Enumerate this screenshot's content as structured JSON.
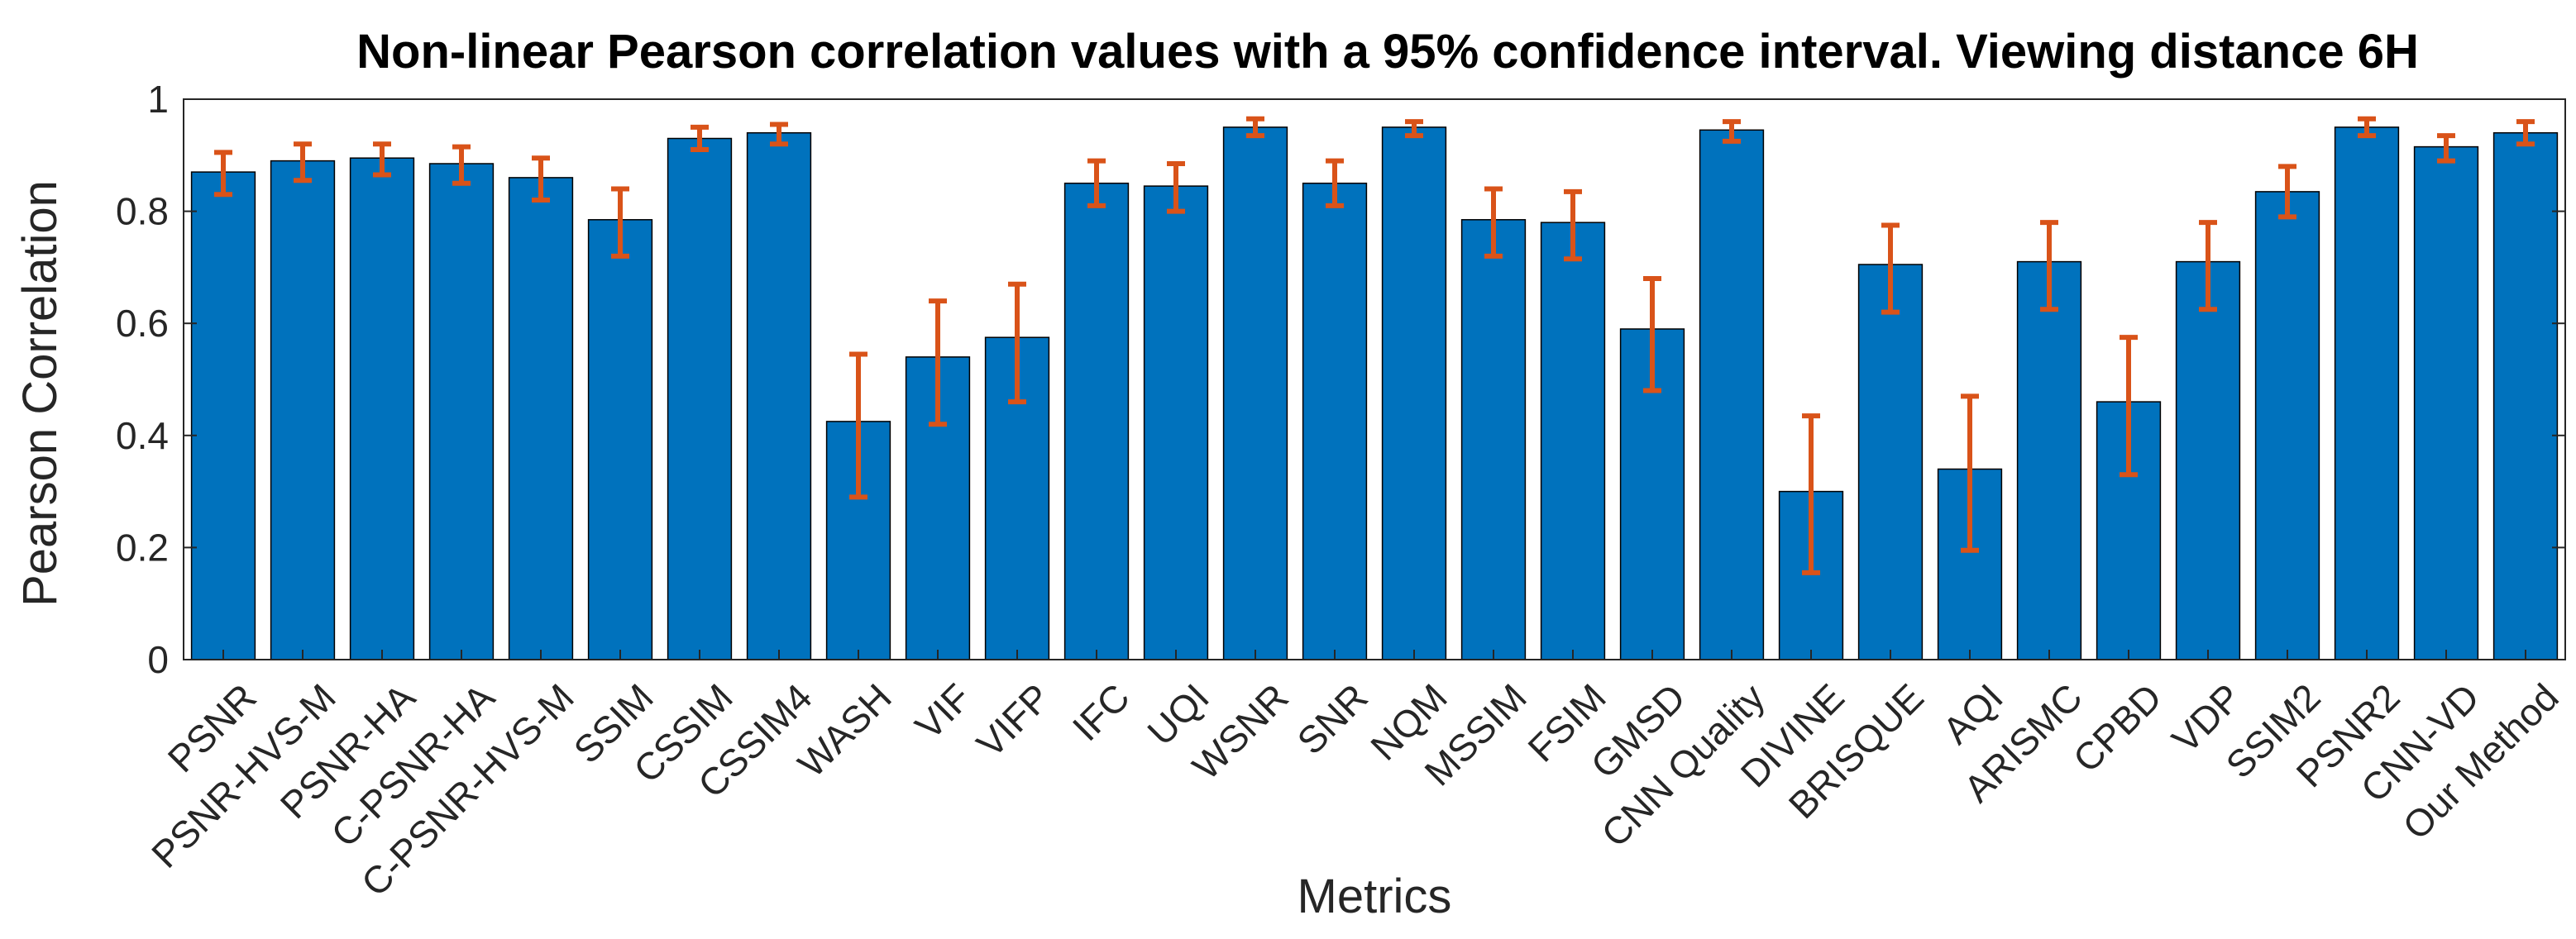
{
  "chart_data": {
    "type": "bar",
    "title": "Non-linear Pearson correlation values with a 95% confidence interval. Viewing distance 6H",
    "xlabel": "Metrics",
    "ylabel": "Pearson Correlation",
    "ylim": [
      0,
      1
    ],
    "yticks": [
      "0",
      "0.2",
      "0.4",
      "0.6",
      "0.8",
      "1"
    ],
    "grid": false,
    "categories": [
      "PSNR",
      "PSNR-HVS-M",
      "PSNR-HA",
      "C-PSNR-HA",
      "C-PSNR-HVS-M",
      "SSIM",
      "CSSIM",
      "CSSIM4",
      "WASH",
      "VIF",
      "VIFP",
      "IFC",
      "UQI",
      "WSNR",
      "SNR",
      "NQM",
      "MSSIM",
      "FSIM",
      "GMSD",
      "CNN Quality",
      "DIVINE",
      "BRISQUE",
      "AQI",
      "ARISMC",
      "CPBD",
      "VDP",
      "SSIM2",
      "PSNR2",
      "CNN-VD",
      "Our Method"
    ],
    "values": [
      0.87,
      0.89,
      0.895,
      0.885,
      0.86,
      0.785,
      0.93,
      0.94,
      0.425,
      0.54,
      0.575,
      0.85,
      0.845,
      0.95,
      0.85,
      0.95,
      0.785,
      0.78,
      0.59,
      0.945,
      0.3,
      0.705,
      0.34,
      0.71,
      0.46,
      0.71,
      0.835,
      0.95,
      0.915,
      0.94
    ],
    "error_low": [
      0.83,
      0.855,
      0.865,
      0.85,
      0.82,
      0.72,
      0.91,
      0.92,
      0.29,
      0.42,
      0.46,
      0.81,
      0.8,
      0.935,
      0.81,
      0.935,
      0.72,
      0.715,
      0.48,
      0.925,
      0.155,
      0.62,
      0.195,
      0.625,
      0.33,
      0.625,
      0.79,
      0.935,
      0.89,
      0.92
    ],
    "error_high": [
      0.905,
      0.92,
      0.92,
      0.915,
      0.895,
      0.84,
      0.95,
      0.955,
      0.545,
      0.64,
      0.67,
      0.89,
      0.885,
      0.965,
      0.89,
      0.96,
      0.84,
      0.835,
      0.68,
      0.96,
      0.435,
      0.775,
      0.47,
      0.78,
      0.575,
      0.78,
      0.88,
      0.965,
      0.935,
      0.96
    ],
    "bar_color": "#0072BD",
    "error_color": "#D95319"
  }
}
